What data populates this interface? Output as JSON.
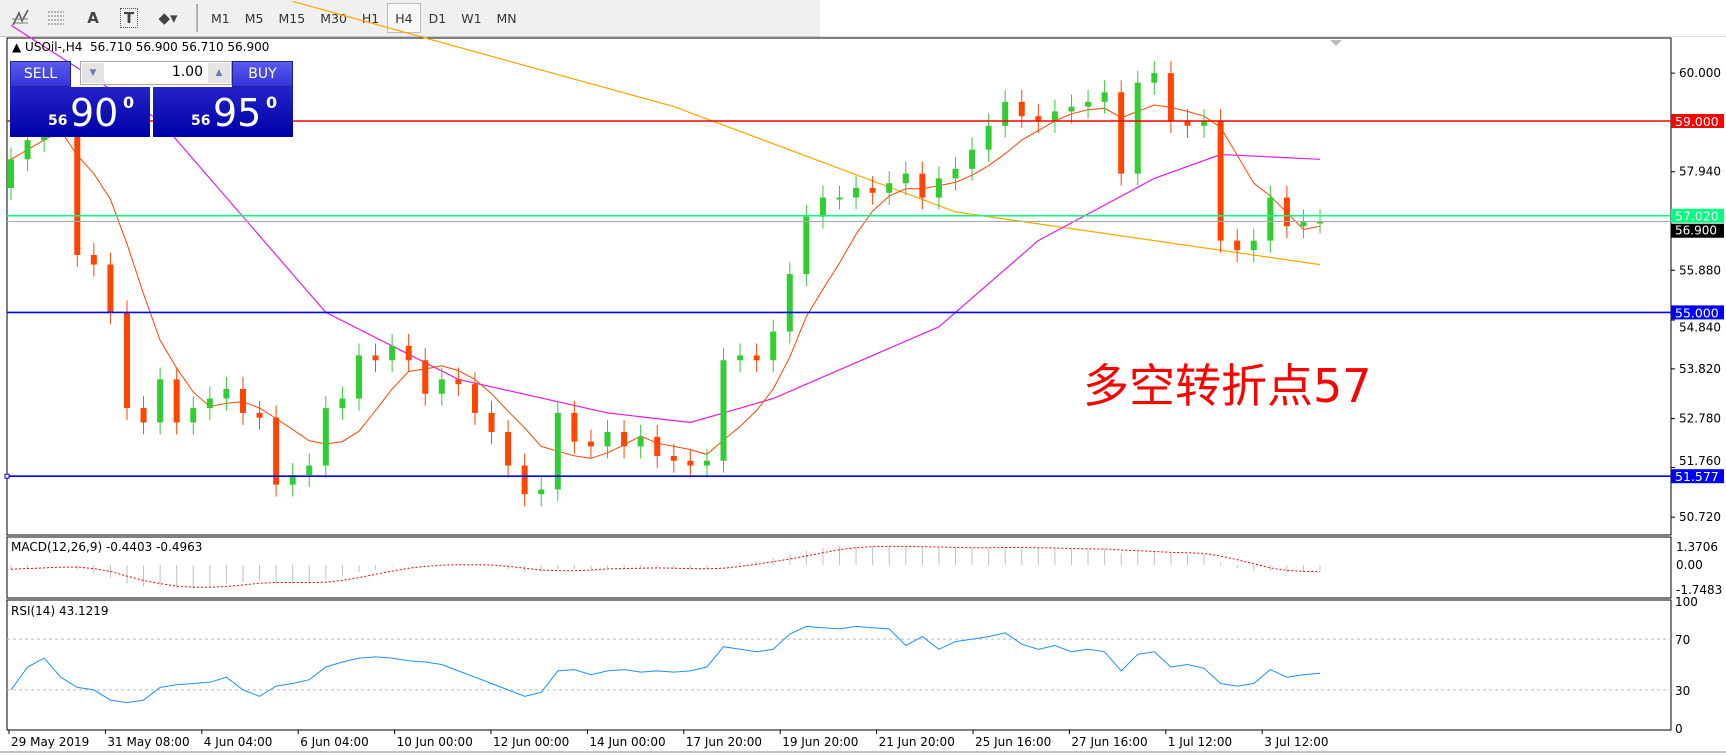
{
  "toolbar": {
    "tools": [
      {
        "icon": "elliott-wave-icon"
      },
      {
        "icon": "fibonacci-grid-icon"
      },
      {
        "icon": "text-icon",
        "glyph": "A"
      },
      {
        "icon": "text-label-icon",
        "glyph": "T"
      },
      {
        "icon": "arrows-dropdown-icon"
      }
    ],
    "timeframes": [
      "M1",
      "M5",
      "M15",
      "M30",
      "H1",
      "H4",
      "D1",
      "W1",
      "MN"
    ],
    "active_timeframe": "H4"
  },
  "chart": {
    "header": "USOil-,H4  56.710 56.900 56.710 56.900",
    "trade_panel": {
      "sell_label": "SELL",
      "buy_label": "BUY",
      "volume": "1.00",
      "sell_price_prefix": "56",
      "sell_price_main": "90",
      "sell_price_sup": "0",
      "buy_price_prefix": "56",
      "buy_price_main": "95",
      "buy_price_sup": "0"
    },
    "annotation": "多空转折点57",
    "colors": {
      "bull": "#32cd32",
      "bear": "#ff4500",
      "ma_fast": "#ff4500",
      "ma_mid": "#e020e0",
      "ma_slow": "#ffa500",
      "rsi": "#1e90ff",
      "macd_signal": "#ff0000",
      "macd_hist": "#c0c0c0"
    }
  },
  "chart_data": [
    {
      "type": "candlestick",
      "symbol": "USOil-",
      "timeframe": "H4",
      "closes": [
        58.2,
        58.6,
        59.0,
        59.4,
        56.2,
        56.0,
        55.0,
        53.0,
        52.7,
        53.6,
        52.7,
        53.0,
        53.2,
        53.4,
        52.9,
        52.8,
        51.4,
        51.6,
        51.8,
        53.0,
        53.2,
        54.1,
        54.0,
        54.3,
        54.0,
        53.3,
        53.6,
        53.5,
        52.9,
        52.5,
        51.8,
        51.2,
        51.3,
        52.9,
        52.3,
        52.2,
        52.5,
        52.2,
        52.4,
        52.0,
        51.9,
        51.8,
        51.9,
        54.0,
        54.1,
        54.0,
        54.6,
        55.8,
        57.0,
        57.4,
        57.4,
        57.6,
        57.5,
        57.7,
        57.9,
        57.4,
        57.8,
        58.0,
        58.4,
        58.9,
        59.4,
        59.1,
        59.0,
        59.2,
        59.3,
        59.4,
        59.6,
        57.9,
        59.8,
        60.0,
        59.0,
        58.9,
        59.0,
        56.5,
        56.3,
        56.5,
        57.4,
        56.8,
        56.9,
        56.9
      ],
      "first_open": 57.6,
      "ma_mid_points": [
        [
          0,
          61.0
        ],
        [
          9,
          59.0
        ],
        [
          19,
          55.0
        ],
        [
          27,
          53.6
        ],
        [
          36,
          52.9
        ],
        [
          41,
          52.7
        ],
        [
          46,
          53.2
        ],
        [
          56,
          54.7
        ],
        [
          62,
          56.5
        ],
        [
          69,
          57.8
        ],
        [
          73,
          58.3
        ],
        [
          79,
          58.2
        ]
      ],
      "ma_slow_points": [
        [
          17,
          61.5
        ],
        [
          40,
          59.3
        ],
        [
          57,
          57.1
        ],
        [
          79,
          56.0
        ]
      ],
      "horizontal_lines": [
        {
          "value": 59.0,
          "label": "59.000",
          "color": "#ff0000"
        },
        {
          "value": 57.02,
          "label": "57.020",
          "color": "#00ff7f"
        },
        {
          "value": 55.0,
          "label": "55.000",
          "color": "#0000ff"
        },
        {
          "value": 51.577,
          "label": "51.577",
          "color": "#0000ff"
        }
      ],
      "current_price": {
        "value": 56.9,
        "label": "56.900"
      },
      "y_ticks": [
        "60.000",
        "57.940",
        "55.880",
        "54.840",
        "53.820",
        "52.780",
        "51.760",
        "50.720"
      ],
      "x_ticks": [
        "29 May 2019",
        "31 May 08:00",
        "4 Jun 04:00",
        "6 Jun 04:00",
        "10 Jun 00:00",
        "12 Jun 00:00",
        "14 Jun 00:00",
        "17 Jun 20:00",
        "19 Jun 20:00",
        "21 Jun 20:00",
        "25 Jun 16:00",
        "27 Jun 16:00",
        "1 Jul 12:00",
        "3 Jul 12:00"
      ]
    },
    {
      "type": "bar",
      "title": "MACD(12,26,9) -0.4403 -0.4963",
      "main": [
        -0.3,
        -0.2,
        -0.1,
        0,
        -0.3,
        -0.6,
        -0.9,
        -1.3,
        -1.5,
        -1.5,
        -1.6,
        -1.6,
        -1.5,
        -1.3,
        -1.2,
        -1.1,
        -1.3,
        -1.3,
        -1.2,
        -1.0,
        -0.8,
        -0.5,
        -0.3,
        -0.1,
        0,
        0,
        0.05,
        0.05,
        0,
        -0.1,
        -0.3,
        -0.5,
        -0.5,
        -0.3,
        -0.3,
        -0.3,
        -0.2,
        -0.2,
        -0.2,
        -0.2,
        -0.3,
        -0.3,
        -0.3,
        0,
        0.2,
        0.3,
        0.5,
        0.8,
        1.1,
        1.3,
        1.4,
        1.4,
        1.4,
        1.4,
        1.4,
        1.3,
        1.3,
        1.3,
        1.3,
        1.3,
        1.35,
        1.3,
        1.25,
        1.2,
        1.2,
        1.2,
        1.2,
        0.9,
        1.0,
        1.0,
        0.9,
        0.8,
        0.8,
        0.2,
        -0.2,
        -0.4,
        -0.4,
        -0.5,
        -0.5,
        -0.44
      ],
      "y_ticks": [
        "1.3706",
        "0.00",
        "-1.7483"
      ],
      "ylim": [
        -1.7483,
        1.3706
      ]
    },
    {
      "type": "line",
      "title": "RSI(14) 43.1219",
      "values": [
        30,
        48,
        55,
        40,
        32,
        30,
        22,
        20,
        22,
        32,
        34,
        35,
        36,
        40,
        30,
        25,
        33,
        35,
        38,
        48,
        52,
        55,
        56,
        55,
        53,
        52,
        50,
        45,
        40,
        35,
        30,
        25,
        28,
        45,
        46,
        42,
        45,
        46,
        44,
        45,
        44,
        45,
        48,
        64,
        62,
        60,
        62,
        74,
        80,
        79,
        78,
        80,
        79,
        78,
        65,
        72,
        62,
        68,
        70,
        72,
        75,
        66,
        62,
        65,
        60,
        62,
        60,
        45,
        58,
        60,
        48,
        50,
        47,
        35,
        33,
        35,
        46,
        40,
        42,
        43.12
      ],
      "y_ticks": [
        "100",
        "70",
        "30",
        "0"
      ],
      "levels": [
        70,
        30
      ],
      "ylim": [
        0,
        100
      ]
    }
  ]
}
